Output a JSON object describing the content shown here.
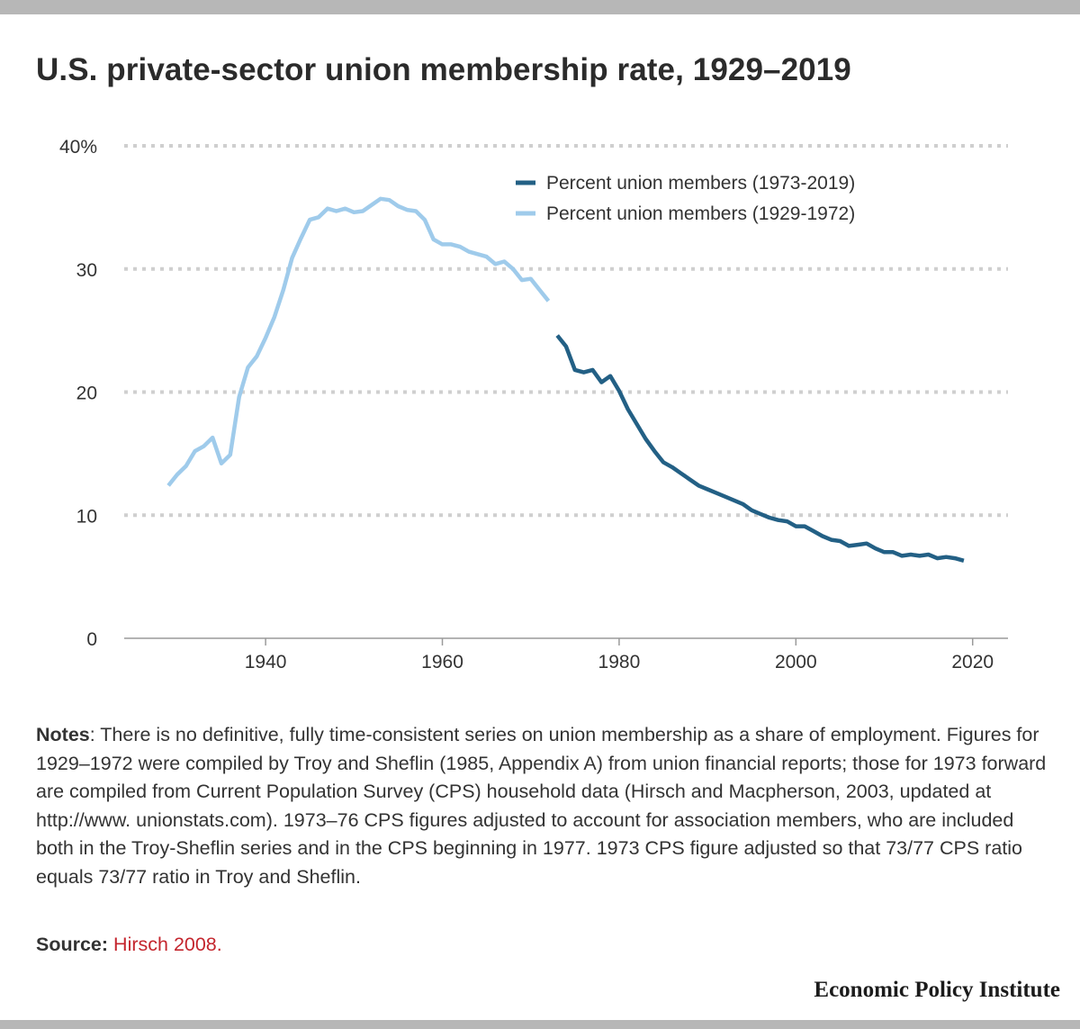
{
  "title": "U.S. private-sector union membership rate, 1929–2019",
  "notes": {
    "label": "Notes",
    "text": ": There is no definitive, fully time-consistent series on union membership as a share of employment. Figures for 1929–1972 were compiled by Troy and Sheflin (1985, Appendix A) from union financial reports; those for 1973 forward are compiled from Current Population Survey (CPS) household data (Hirsch and Macpherson, 2003, updated at http://www. unionstats.com). 1973–76 CPS figures adjusted to account for association members, who are included both in the Troy-Sheflin series and in the CPS beginning in 1977. 1973 CPS figure adjusted so that 73/77 CPS ratio equals 73/77 ratio in Troy and Sheflin."
  },
  "source": {
    "label": "Source:",
    "link_text": "Hirsch 2008."
  },
  "brand": "Economic Policy Institute",
  "chart_data": {
    "type": "line",
    "xlim": [
      1924,
      2024
    ],
    "ylim": [
      0,
      40
    ],
    "x_ticks": [
      1940,
      1960,
      1980,
      2000,
      2020
    ],
    "y_ticks": [
      0,
      10,
      20,
      30,
      40
    ],
    "y_tick_labels": [
      "0",
      "10",
      "20",
      "30",
      "40%"
    ],
    "grid": "horizontal-dotted",
    "legend_position": "top-right",
    "series": [
      {
        "name": "Percent union members (1973-2019)",
        "color": "#236085",
        "x": [
          1973,
          1974,
          1975,
          1976,
          1977,
          1978,
          1979,
          1980,
          1981,
          1982,
          1983,
          1984,
          1985,
          1986,
          1987,
          1988,
          1989,
          1990,
          1991,
          1992,
          1993,
          1994,
          1995,
          1996,
          1997,
          1998,
          1999,
          2000,
          2001,
          2002,
          2003,
          2004,
          2005,
          2006,
          2007,
          2008,
          2009,
          2010,
          2011,
          2012,
          2013,
          2014,
          2015,
          2016,
          2017,
          2018,
          2019
        ],
        "y": [
          24.6,
          23.7,
          21.8,
          21.6,
          21.8,
          20.8,
          21.3,
          20.1,
          18.6,
          17.4,
          16.2,
          15.2,
          14.3,
          13.9,
          13.4,
          12.9,
          12.4,
          12.1,
          11.8,
          11.5,
          11.2,
          10.9,
          10.4,
          10.1,
          9.8,
          9.6,
          9.5,
          9.1,
          9.1,
          8.7,
          8.3,
          8.0,
          7.9,
          7.5,
          7.6,
          7.7,
          7.3,
          7.0,
          7.0,
          6.7,
          6.8,
          6.7,
          6.8,
          6.5,
          6.6,
          6.5,
          6.3
        ]
      },
      {
        "name": "Percent union members (1929-1972)",
        "color": "#9fcbeb",
        "x": [
          1929,
          1930,
          1931,
          1932,
          1933,
          1934,
          1935,
          1936,
          1937,
          1938,
          1939,
          1940,
          1941,
          1942,
          1943,
          1944,
          1945,
          1946,
          1947,
          1948,
          1949,
          1950,
          1951,
          1952,
          1953,
          1954,
          1955,
          1956,
          1957,
          1958,
          1959,
          1960,
          1961,
          1962,
          1963,
          1964,
          1965,
          1966,
          1967,
          1968,
          1969,
          1970,
          1971,
          1972
        ],
        "y": [
          12.4,
          13.3,
          14.0,
          15.2,
          15.6,
          16.3,
          14.2,
          14.9,
          19.6,
          22.0,
          22.9,
          24.4,
          26.1,
          28.3,
          30.9,
          32.5,
          34.0,
          34.2,
          34.9,
          34.7,
          34.9,
          34.6,
          34.7,
          35.2,
          35.7,
          35.6,
          35.1,
          34.8,
          34.7,
          34.0,
          32.4,
          32.0,
          32.0,
          31.8,
          31.4,
          31.2,
          31.0,
          30.4,
          30.6,
          30.0,
          29.1,
          29.2,
          28.3,
          27.4
        ]
      }
    ]
  }
}
